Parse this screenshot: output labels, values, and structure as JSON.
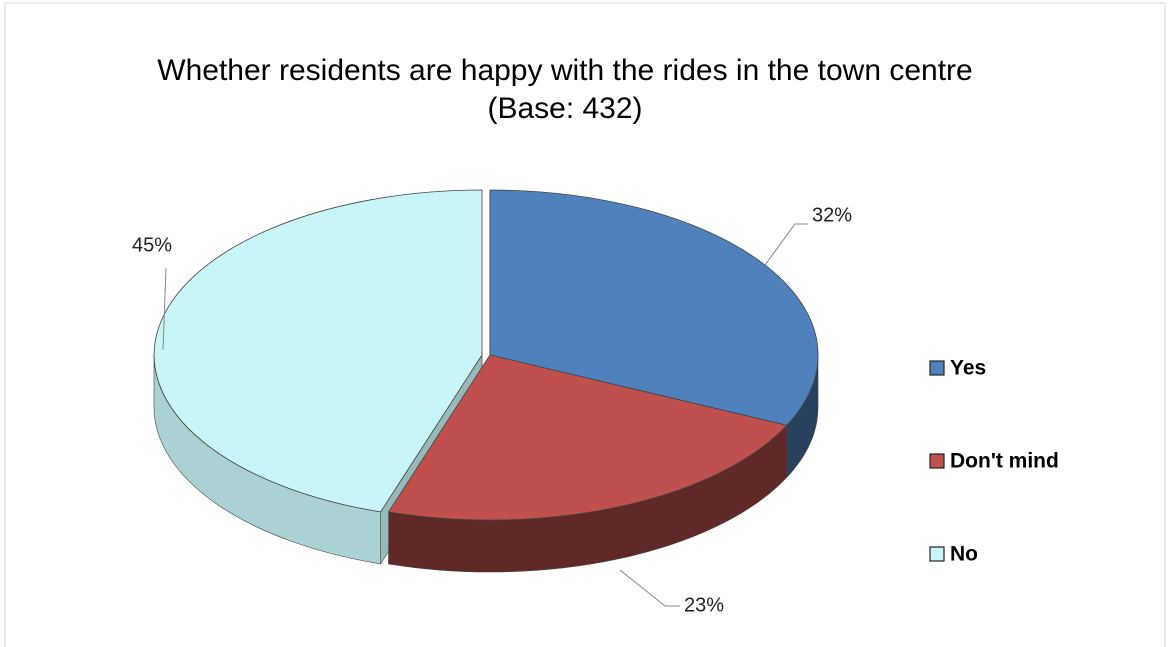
{
  "chart_data": {
    "type": "pie",
    "title": "Whether residents are happy with the rides in the town centre (Base: 432)",
    "categories": [
      "Yes",
      "Don't mind",
      "No"
    ],
    "values": [
      32,
      23,
      45
    ],
    "value_labels": [
      "32%",
      "23%",
      "45%"
    ],
    "colors": [
      "#4f81bd",
      "#c0504d",
      "#c8f6f8"
    ],
    "legend": "right"
  }
}
